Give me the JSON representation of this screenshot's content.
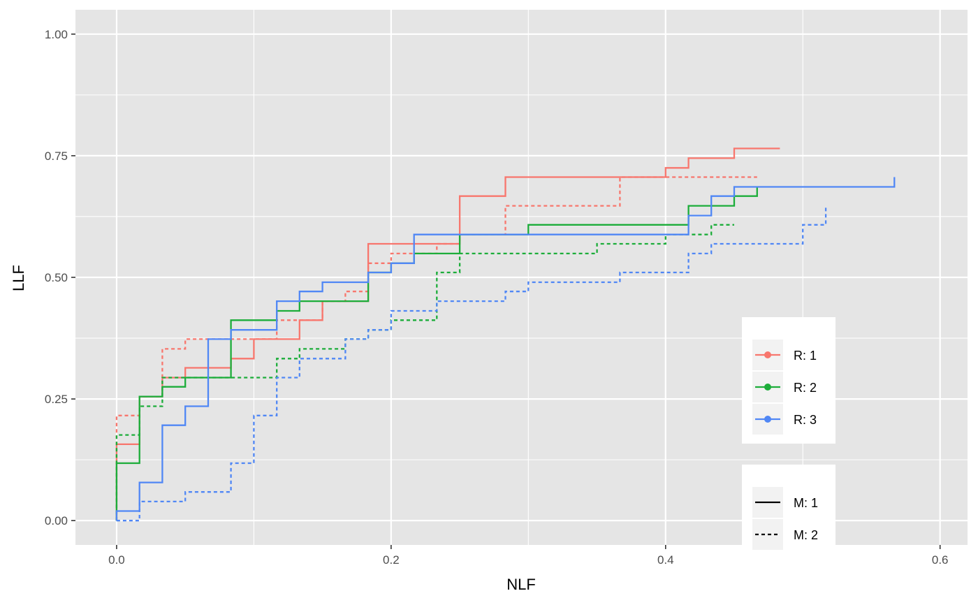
{
  "chart_data": {
    "type": "line",
    "step": true,
    "xlabel": "NLF",
    "ylabel": "LLF",
    "xlim": [
      -0.03,
      0.62
    ],
    "ylim": [
      -0.05,
      1.05
    ],
    "x_ticks": [
      "0.0",
      "0.2",
      "0.4",
      "0.6"
    ],
    "y_ticks": [
      "0.00",
      "0.25",
      "0.50",
      "0.75",
      "1.00"
    ],
    "grid": true,
    "colors": {
      "R1": "#f8766d",
      "R2": "#1cad3a",
      "R3": "#5087f5",
      "panel": "#e5e5e5",
      "grid": "#ffffff"
    },
    "legend_color": {
      "placement": "right-inside",
      "entries": [
        {
          "label": "R: 1",
          "color": "#f8766d"
        },
        {
          "label": "R: 2",
          "color": "#1cad3a"
        },
        {
          "label": "R: 3",
          "color": "#5087f5"
        }
      ]
    },
    "legend_linetype": {
      "entries": [
        {
          "label": "M: 1",
          "dash": "solid"
        },
        {
          "label": "M: 2",
          "dash": "dotted"
        }
      ]
    },
    "series": [
      {
        "reader": 1,
        "modality": 1,
        "color": "#f8766d",
        "dash": "solid",
        "points": [
          [
            0,
            0
          ],
          [
            0,
            0.157
          ],
          [
            0.0167,
            0.157
          ],
          [
            0.0167,
            0.255
          ],
          [
            0.0333,
            0.255
          ],
          [
            0.0333,
            0.294
          ],
          [
            0.05,
            0.294
          ],
          [
            0.05,
            0.314
          ],
          [
            0.0833,
            0.314
          ],
          [
            0.0833,
            0.333
          ],
          [
            0.1,
            0.333
          ],
          [
            0.1,
            0.373
          ],
          [
            0.1333,
            0.373
          ],
          [
            0.1333,
            0.412
          ],
          [
            0.15,
            0.412
          ],
          [
            0.15,
            0.451
          ],
          [
            0.1833,
            0.451
          ],
          [
            0.1833,
            0.569
          ],
          [
            0.25,
            0.569
          ],
          [
            0.25,
            0.667
          ],
          [
            0.2833,
            0.667
          ],
          [
            0.2833,
            0.706
          ],
          [
            0.4,
            0.706
          ],
          [
            0.4,
            0.725
          ],
          [
            0.4167,
            0.725
          ],
          [
            0.4167,
            0.745
          ],
          [
            0.45,
            0.745
          ],
          [
            0.45,
            0.765
          ],
          [
            0.4833,
            0.765
          ]
        ]
      },
      {
        "reader": 1,
        "modality": 2,
        "color": "#f8766d",
        "dash": "dotted",
        "points": [
          [
            0,
            0
          ],
          [
            0,
            0.216
          ],
          [
            0.0167,
            0.216
          ],
          [
            0.0167,
            0.255
          ],
          [
            0.0333,
            0.255
          ],
          [
            0.0333,
            0.353
          ],
          [
            0.05,
            0.353
          ],
          [
            0.05,
            0.373
          ],
          [
            0.1167,
            0.373
          ],
          [
            0.1167,
            0.412
          ],
          [
            0.15,
            0.412
          ],
          [
            0.15,
            0.451
          ],
          [
            0.1667,
            0.451
          ],
          [
            0.1667,
            0.471
          ],
          [
            0.1833,
            0.471
          ],
          [
            0.1833,
            0.529
          ],
          [
            0.2,
            0.529
          ],
          [
            0.2,
            0.549
          ],
          [
            0.2333,
            0.549
          ],
          [
            0.2333,
            0.569
          ],
          [
            0.25,
            0.569
          ],
          [
            0.25,
            0.588
          ],
          [
            0.2833,
            0.588
          ],
          [
            0.2833,
            0.647
          ],
          [
            0.3667,
            0.647
          ],
          [
            0.3667,
            0.706
          ],
          [
            0.4667,
            0.706
          ]
        ]
      },
      {
        "reader": 2,
        "modality": 1,
        "color": "#1cad3a",
        "dash": "solid",
        "points": [
          [
            0,
            0
          ],
          [
            0,
            0.118
          ],
          [
            0.0167,
            0.118
          ],
          [
            0.0167,
            0.255
          ],
          [
            0.0333,
            0.255
          ],
          [
            0.0333,
            0.275
          ],
          [
            0.05,
            0.275
          ],
          [
            0.05,
            0.294
          ],
          [
            0.0833,
            0.294
          ],
          [
            0.0833,
            0.412
          ],
          [
            0.1167,
            0.412
          ],
          [
            0.1167,
            0.431
          ],
          [
            0.1333,
            0.431
          ],
          [
            0.1333,
            0.451
          ],
          [
            0.1833,
            0.451
          ],
          [
            0.1833,
            0.51
          ],
          [
            0.2,
            0.51
          ],
          [
            0.2,
            0.529
          ],
          [
            0.2167,
            0.529
          ],
          [
            0.2167,
            0.549
          ],
          [
            0.25,
            0.549
          ],
          [
            0.25,
            0.588
          ],
          [
            0.3,
            0.588
          ],
          [
            0.3,
            0.608
          ],
          [
            0.4167,
            0.608
          ],
          [
            0.4167,
            0.647
          ],
          [
            0.45,
            0.647
          ],
          [
            0.45,
            0.667
          ],
          [
            0.4667,
            0.667
          ],
          [
            0.4667,
            0.686
          ]
        ]
      },
      {
        "reader": 2,
        "modality": 2,
        "color": "#1cad3a",
        "dash": "dotted",
        "points": [
          [
            0,
            0
          ],
          [
            0,
            0.176
          ],
          [
            0.0167,
            0.176
          ],
          [
            0.0167,
            0.235
          ],
          [
            0.0333,
            0.235
          ],
          [
            0.0333,
            0.294
          ],
          [
            0.1167,
            0.294
          ],
          [
            0.1167,
            0.333
          ],
          [
            0.1333,
            0.333
          ],
          [
            0.1333,
            0.353
          ],
          [
            0.1667,
            0.353
          ],
          [
            0.1667,
            0.373
          ],
          [
            0.1833,
            0.373
          ],
          [
            0.1833,
            0.392
          ],
          [
            0.2,
            0.392
          ],
          [
            0.2,
            0.412
          ],
          [
            0.2333,
            0.412
          ],
          [
            0.2333,
            0.51
          ],
          [
            0.25,
            0.51
          ],
          [
            0.25,
            0.549
          ],
          [
            0.35,
            0.549
          ],
          [
            0.35,
            0.569
          ],
          [
            0.4,
            0.569
          ],
          [
            0.4,
            0.588
          ],
          [
            0.4333,
            0.588
          ],
          [
            0.4333,
            0.608
          ],
          [
            0.45,
            0.608
          ]
        ]
      },
      {
        "reader": 3,
        "modality": 1,
        "color": "#5087f5",
        "dash": "solid",
        "points": [
          [
            0,
            0
          ],
          [
            0,
            0.0196
          ],
          [
            0.0167,
            0.0196
          ],
          [
            0.0167,
            0.0784
          ],
          [
            0.0333,
            0.0784
          ],
          [
            0.0333,
            0.196
          ],
          [
            0.05,
            0.196
          ],
          [
            0.05,
            0.235
          ],
          [
            0.0667,
            0.235
          ],
          [
            0.0667,
            0.373
          ],
          [
            0.0833,
            0.373
          ],
          [
            0.0833,
            0.392
          ],
          [
            0.1167,
            0.392
          ],
          [
            0.1167,
            0.451
          ],
          [
            0.1333,
            0.451
          ],
          [
            0.1333,
            0.471
          ],
          [
            0.15,
            0.471
          ],
          [
            0.15,
            0.49
          ],
          [
            0.1833,
            0.49
          ],
          [
            0.1833,
            0.51
          ],
          [
            0.2,
            0.51
          ],
          [
            0.2,
            0.529
          ],
          [
            0.2167,
            0.529
          ],
          [
            0.2167,
            0.588
          ],
          [
            0.4167,
            0.588
          ],
          [
            0.4167,
            0.627
          ],
          [
            0.4333,
            0.627
          ],
          [
            0.4333,
            0.667
          ],
          [
            0.45,
            0.667
          ],
          [
            0.45,
            0.686
          ],
          [
            0.5667,
            0.686
          ],
          [
            0.5667,
            0.706
          ]
        ]
      },
      {
        "reader": 3,
        "modality": 2,
        "color": "#5087f5",
        "dash": "dotted",
        "points": [
          [
            0,
            0
          ],
          [
            0.0167,
            0
          ],
          [
            0.0167,
            0.0392
          ],
          [
            0.05,
            0.0392
          ],
          [
            0.05,
            0.0588
          ],
          [
            0.0833,
            0.0588
          ],
          [
            0.0833,
            0.118
          ],
          [
            0.1,
            0.118
          ],
          [
            0.1,
            0.216
          ],
          [
            0.1167,
            0.216
          ],
          [
            0.1167,
            0.294
          ],
          [
            0.1333,
            0.294
          ],
          [
            0.1333,
            0.333
          ],
          [
            0.1667,
            0.333
          ],
          [
            0.1667,
            0.373
          ],
          [
            0.1833,
            0.373
          ],
          [
            0.1833,
            0.392
          ],
          [
            0.2,
            0.392
          ],
          [
            0.2,
            0.431
          ],
          [
            0.2333,
            0.431
          ],
          [
            0.2333,
            0.451
          ],
          [
            0.2833,
            0.451
          ],
          [
            0.2833,
            0.471
          ],
          [
            0.3,
            0.471
          ],
          [
            0.3,
            0.49
          ],
          [
            0.3667,
            0.49
          ],
          [
            0.3667,
            0.51
          ],
          [
            0.4167,
            0.51
          ],
          [
            0.4167,
            0.549
          ],
          [
            0.4333,
            0.549
          ],
          [
            0.4333,
            0.569
          ],
          [
            0.5,
            0.569
          ],
          [
            0.5,
            0.608
          ],
          [
            0.5167,
            0.608
          ],
          [
            0.5167,
            0.647
          ]
        ]
      }
    ]
  }
}
